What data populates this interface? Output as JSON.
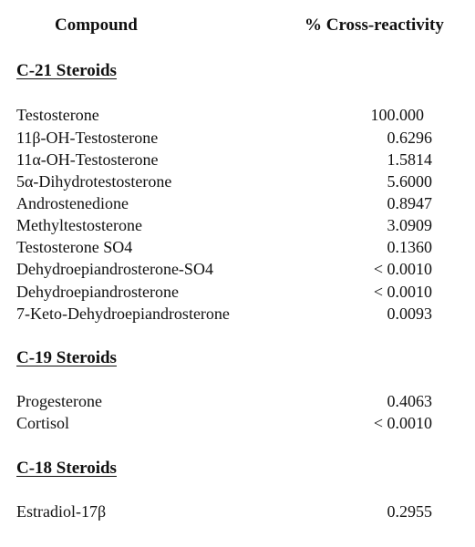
{
  "header": {
    "compound_label": "Compound",
    "value_label": "% Cross-reactivity"
  },
  "sections": [
    {
      "title": "C-21 Steroids",
      "rows": [
        {
          "compound": "Testosterone",
          "value": "100.000"
        },
        {
          "compound": "11β-OH-Testosterone",
          "value": "0.6296"
        },
        {
          "compound": "11α-OH-Testosterone",
          "value": "1.5814"
        },
        {
          "compound": "5α-Dihydrotestosterone",
          "value": "5.6000"
        },
        {
          "compound": "Androstenedione",
          "value": "0.8947"
        },
        {
          "compound": "Methyltestosterone",
          "value": "3.0909"
        },
        {
          "compound": "Testosterone SO4",
          "value": "0.1360"
        },
        {
          "compound": "Dehydroepiandrosterone-SO4",
          "value": "< 0.0010"
        },
        {
          "compound": "Dehydroepiandrosterone",
          "value": "< 0.0010"
        },
        {
          "compound": "7-Keto-Dehydroepiandrosterone",
          "value": "0.0093"
        }
      ]
    },
    {
      "title": "C-19 Steroids",
      "rows": [
        {
          "compound": "Progesterone",
          "value": "0.4063"
        },
        {
          "compound": "Cortisol",
          "value": "< 0.0010"
        }
      ]
    },
    {
      "title": "C-18 Steroids",
      "rows": [
        {
          "compound": "Estradiol-17β",
          "value": "0.2955"
        }
      ]
    }
  ]
}
